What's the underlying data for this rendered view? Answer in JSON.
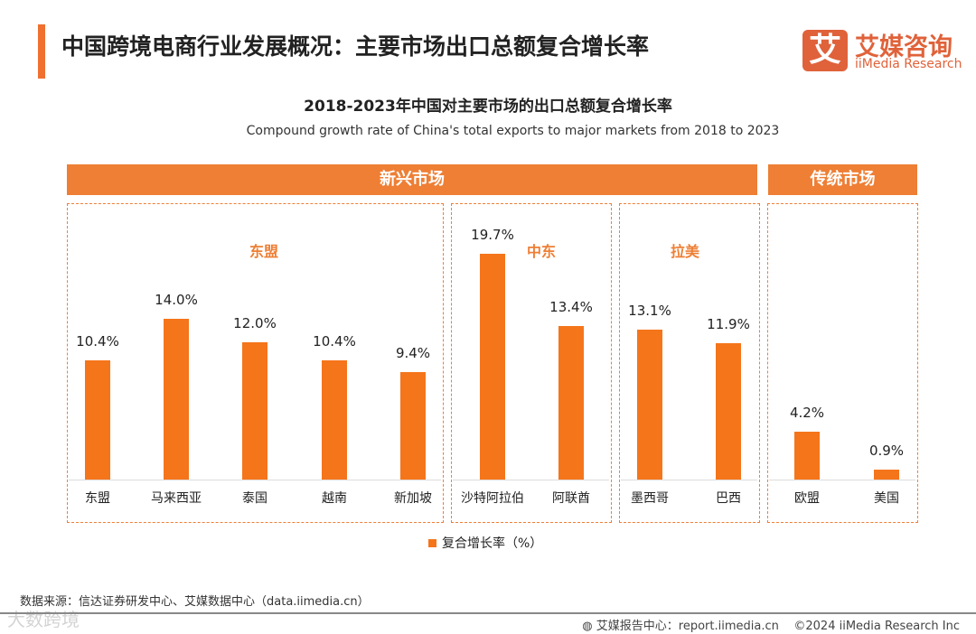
{
  "header": {
    "title": "中国跨境电商行业发展概况：主要市场出口总额复合增长率"
  },
  "logo": {
    "mark": "艾",
    "cn": "艾媒咨询",
    "en": "iiMedia Research"
  },
  "chart_data": {
    "type": "bar",
    "title": "2018-2023年中国对主要市场的出口总额复合增长率",
    "subtitle": "Compound growth rate of China's total exports to major markets from 2018 to 2023",
    "categories": [
      "东盟",
      "马来西亚",
      "泰国",
      "越南",
      "新加坡",
      "沙特阿拉伯",
      "阿联酋",
      "墨西哥",
      "巴西",
      "欧盟",
      "美国"
    ],
    "values": [
      10.4,
      14.0,
      12.0,
      10.4,
      9.4,
      19.7,
      13.4,
      13.1,
      11.9,
      4.2,
      0.9
    ],
    "value_labels": [
      "10.4%",
      "14.0%",
      "12.0%",
      "10.4%",
      "9.4%",
      "19.7%",
      "13.4%",
      "13.1%",
      "11.9%",
      "4.2%",
      "0.9%"
    ],
    "groups": [
      {
        "name": "东盟"
      },
      {
        "name": "中东"
      },
      {
        "name": "拉美"
      }
    ],
    "super_groups": [
      "新兴市场",
      "传统市场"
    ],
    "legend": "复合增长率（%）",
    "ylim": [
      0,
      20
    ],
    "color": "#f5751b"
  },
  "footer": {
    "source": "数据来源：信达证券研发中心、艾媒数据中心（data.iimedia.cn）",
    "report": "艾媒报告中心：report.iimedia.cn",
    "copyright": "©2024  iiMedia Research  Inc",
    "watermark": "大数跨境"
  }
}
